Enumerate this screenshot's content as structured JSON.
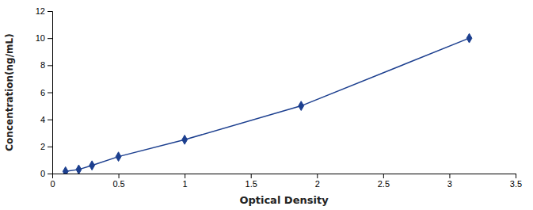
{
  "chart_data": {
    "type": "line",
    "x": [
      0.1,
      0.2,
      0.3,
      0.5,
      1.0,
      1.88,
      3.15
    ],
    "values": [
      0.156,
      0.3,
      0.6,
      1.25,
      2.5,
      5.0,
      10.0
    ],
    "color": "#1c3f8f",
    "marker": "diamond",
    "xlabel": "Optical Density",
    "ylabel": "Concentration(ng/mL)",
    "xlim": [
      0,
      3.5
    ],
    "ylim": [
      0,
      12
    ],
    "xticks": [
      0,
      0.5,
      1,
      1.5,
      2,
      2.5,
      3,
      3.5
    ],
    "yticks": [
      0,
      2,
      4,
      6,
      8,
      10,
      12
    ],
    "grid": false
  }
}
